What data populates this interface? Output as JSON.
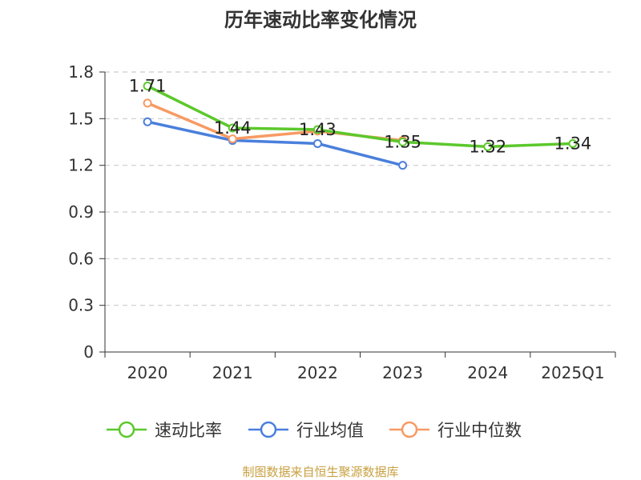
{
  "chart_data": {
    "type": "line",
    "title": "历年速动比率变化情况",
    "categories": [
      "2020",
      "2021",
      "2022",
      "2023",
      "2024",
      "2025Q1"
    ],
    "ylim": [
      0,
      1.8
    ],
    "yticks": [
      "0",
      "0.3",
      "0.6",
      "0.9",
      "1.2",
      "1.5",
      "1.8"
    ],
    "ytick_values": [
      0,
      0.3,
      0.6,
      0.9,
      1.2,
      1.5,
      1.8
    ],
    "grid": true,
    "legend_position": "bottom",
    "series": [
      {
        "name": "速动比率",
        "color": "#5cc82c",
        "values": [
          1.71,
          1.44,
          1.43,
          1.35,
          1.32,
          1.34
        ],
        "labels": [
          "1.71",
          "1.44",
          "1.43",
          "1.35",
          "1.32",
          "1.34"
        ]
      },
      {
        "name": "行业均值",
        "color": "#4a7fdc",
        "values": [
          1.48,
          1.36,
          1.34,
          1.2,
          null,
          null
        ]
      },
      {
        "name": "行业中位数",
        "color": "#f79a63",
        "values": [
          1.6,
          1.37,
          1.42,
          1.36,
          null,
          null
        ]
      }
    ],
    "source": "制图数据来自恒生聚源数据库"
  }
}
